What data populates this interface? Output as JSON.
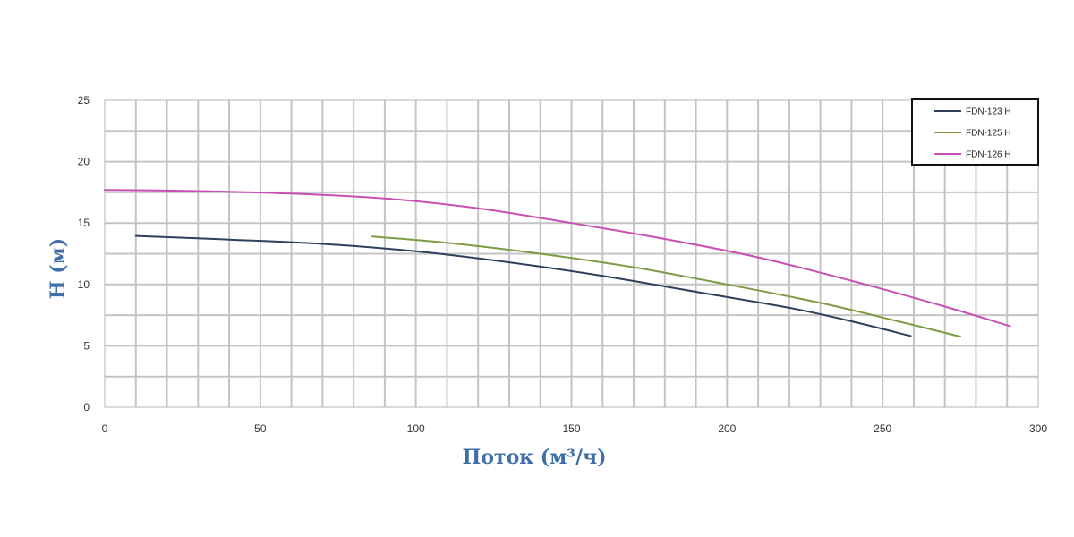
{
  "chart_data": {
    "type": "line",
    "title": "",
    "xlabel": "Поток (м³/ч)",
    "ylabel": "H (м)",
    "xlim": [
      0,
      300
    ],
    "ylim": [
      0,
      25
    ],
    "x_ticks": [
      "0",
      "50",
      "100",
      "150",
      "200",
      "250",
      "300"
    ],
    "y_ticks": [
      "0",
      "5",
      "10",
      "15",
      "20",
      "25"
    ],
    "x_minor_step": 10,
    "y_minor_step": 2.5,
    "grid": true,
    "legend_position": "top-right",
    "series": [
      {
        "name": "FDN-123 H",
        "color": "#2e3f5c",
        "points": [
          [
            10,
            13.95
          ],
          [
            40,
            13.65
          ],
          [
            70,
            13.3
          ],
          [
            100,
            12.7
          ],
          [
            130,
            11.8
          ],
          [
            160,
            10.7
          ],
          [
            190,
            9.4
          ],
          [
            220,
            8.1
          ],
          [
            240,
            7.0
          ],
          [
            259,
            5.8
          ]
        ]
      },
      {
        "name": "FDN-125 H",
        "color": "#7f9a44",
        "points": [
          [
            86,
            13.9
          ],
          [
            110,
            13.4
          ],
          [
            140,
            12.5
          ],
          [
            170,
            11.4
          ],
          [
            200,
            10.0
          ],
          [
            230,
            8.5
          ],
          [
            255,
            7.0
          ],
          [
            275,
            5.75
          ]
        ]
      },
      {
        "name": "FDN-126 H",
        "color": "#c84fb5",
        "points": [
          [
            0,
            17.7
          ],
          [
            30,
            17.6
          ],
          [
            60,
            17.4
          ],
          [
            90,
            17.0
          ],
          [
            120,
            16.2
          ],
          [
            150,
            15.0
          ],
          [
            180,
            13.7
          ],
          [
            210,
            12.2
          ],
          [
            240,
            10.3
          ],
          [
            270,
            8.2
          ],
          [
            291,
            6.6
          ]
        ]
      }
    ]
  }
}
